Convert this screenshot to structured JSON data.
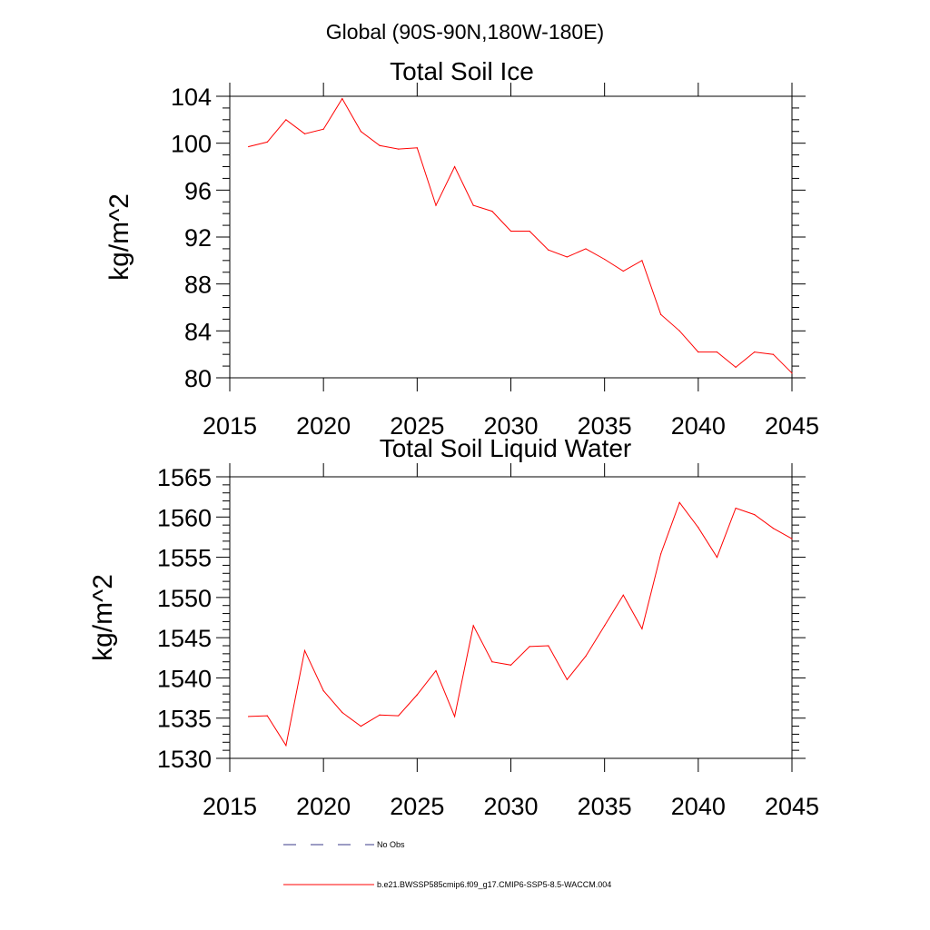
{
  "figure": {
    "main_title": "Global (90S-90N,180W-180E)"
  },
  "chart_data": [
    {
      "type": "line",
      "title": "Total Soil Ice",
      "ylabel": "kg/m^2",
      "xlabel": "",
      "xlim": [
        2015,
        2045
      ],
      "ylim": [
        80,
        104
      ],
      "xticks": [
        2015,
        2020,
        2025,
        2030,
        2035,
        2040,
        2045
      ],
      "yticks": [
        80,
        84,
        88,
        92,
        96,
        100,
        104
      ],
      "xtick_labels": [
        "2015",
        "2020",
        "2025",
        "2030",
        "2035",
        "2040",
        "2045"
      ],
      "ytick_labels": [
        "80",
        "84",
        "88",
        "92",
        "96",
        "100",
        "104"
      ],
      "y_minor_step": 1,
      "grid": false,
      "series": [
        {
          "name": "b.e21.BWSSP585cmip6.f09_g17.CMIP6-SSP5-8.5-WACCM.004",
          "color": "#ff0000",
          "x": [
            2016,
            2017,
            2018,
            2019,
            2020,
            2021,
            2022,
            2023,
            2024,
            2025,
            2026,
            2027,
            2028,
            2029,
            2030,
            2031,
            2032,
            2033,
            2034,
            2035,
            2036,
            2037,
            2038,
            2039,
            2040,
            2041,
            2042,
            2043,
            2044,
            2045
          ],
          "y": [
            99.7,
            100.1,
            102.0,
            100.8,
            101.2,
            103.8,
            101.0,
            99.8,
            99.5,
            99.6,
            94.7,
            98.0,
            94.7,
            94.2,
            92.5,
            92.5,
            90.9,
            90.3,
            91.0,
            90.1,
            89.1,
            90.0,
            85.4,
            84.0,
            82.2,
            82.2,
            80.9,
            82.2,
            82.0,
            80.4
          ]
        }
      ]
    },
    {
      "type": "line",
      "title": "Total Soil Liquid Water",
      "ylabel": "kg/m^2",
      "xlabel": "",
      "xlim": [
        2015,
        2045
      ],
      "ylim": [
        1530,
        1565
      ],
      "xticks": [
        2015,
        2020,
        2025,
        2030,
        2035,
        2040,
        2045
      ],
      "yticks": [
        1530,
        1535,
        1540,
        1545,
        1550,
        1555,
        1560,
        1565
      ],
      "xtick_labels": [
        "2015",
        "2020",
        "2025",
        "2030",
        "2035",
        "2040",
        "2045"
      ],
      "ytick_labels": [
        "1530",
        "1535",
        "1540",
        "1545",
        "1550",
        "1555",
        "1560",
        "1565"
      ],
      "y_minor_step": 1,
      "grid": false,
      "series": [
        {
          "name": "b.e21.BWSSP585cmip6.f09_g17.CMIP6-SSP5-8.5-WACCM.004",
          "color": "#ff0000",
          "x": [
            2016,
            2017,
            2018,
            2019,
            2020,
            2021,
            2022,
            2023,
            2024,
            2025,
            2026,
            2027,
            2028,
            2029,
            2030,
            2031,
            2032,
            2033,
            2034,
            2035,
            2036,
            2037,
            2038,
            2039,
            2040,
            2041,
            2042,
            2043,
            2044,
            2045
          ],
          "y": [
            1535.2,
            1535.3,
            1531.6,
            1543.4,
            1538.4,
            1535.7,
            1534.0,
            1535.4,
            1535.3,
            1537.9,
            1540.9,
            1535.2,
            1546.5,
            1542.0,
            1541.6,
            1543.9,
            1544.0,
            1539.8,
            1542.7,
            1546.5,
            1550.3,
            1546.1,
            1555.4,
            1561.8,
            1558.7,
            1555.0,
            1561.1,
            1560.3,
            1558.6,
            1557.3
          ]
        }
      ]
    }
  ],
  "legend": {
    "placement": "bottom-center",
    "entries": [
      {
        "label": "No Obs",
        "color": "#3a3a8a",
        "style": "dashed"
      },
      {
        "label": "b.e21.BWSSP585cmip6.f09_g17.CMIP6-SSP5-8.5-WACCM.004",
        "color": "#ff0000",
        "style": "solid"
      }
    ]
  }
}
